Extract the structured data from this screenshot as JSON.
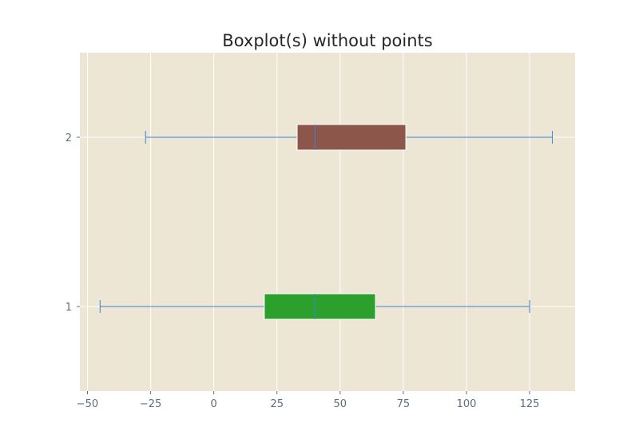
{
  "chart_data": {
    "type": "boxplot",
    "orientation": "horizontal",
    "title": "Boxplot(s) without points",
    "xlabel": "",
    "ylabel": "",
    "xlim": [
      -53,
      143
    ],
    "ylim": [
      0.5,
      2.5
    ],
    "grid": true,
    "x_ticks": [
      -50,
      -25,
      0,
      25,
      50,
      75,
      100,
      125
    ],
    "x_tick_labels": [
      "−50",
      "−25",
      "0",
      "25",
      "50",
      "75",
      "100",
      "125"
    ],
    "y_ticks": [
      1,
      2
    ],
    "y_tick_labels": [
      "1",
      "2"
    ],
    "colors": {
      "plot_background": "#ede6d4",
      "grid": "#ffffff",
      "whisker": "#3a86d4",
      "median": "#3a86d4",
      "tick_label": "#5d6d7e",
      "title": "#262626"
    },
    "boxes": [
      {
        "position": 1,
        "whislo": -45,
        "q1": 20,
        "median": 40,
        "q3": 64,
        "whishi": 125,
        "color": "#2ca02c"
      },
      {
        "position": 2,
        "whislo": -27,
        "q1": 33,
        "median": 40,
        "q3": 76,
        "whishi": 134,
        "color": "#8c564b"
      }
    ]
  }
}
